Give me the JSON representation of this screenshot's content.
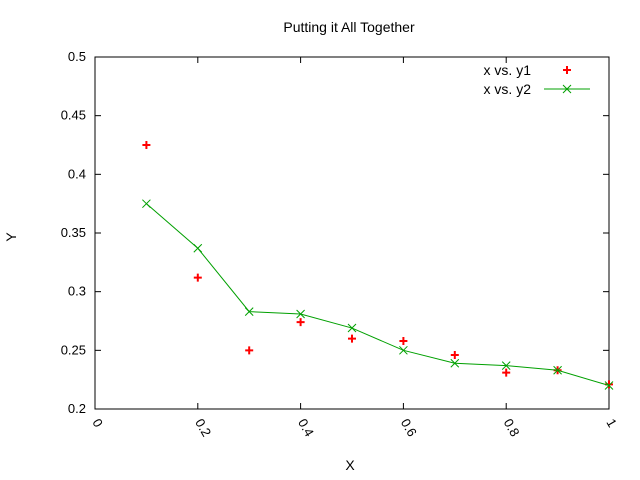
{
  "chart_data": {
    "type": "line",
    "title": "Putting it All Together",
    "xlabel": "X",
    "ylabel": "Y",
    "xlim": [
      0,
      1
    ],
    "ylim": [
      0.2,
      0.5
    ],
    "xticks": [
      "0",
      "0.2",
      "0.4",
      "0.6",
      "0.8",
      "1"
    ],
    "yticks": [
      "0.2",
      "0.25",
      "0.3",
      "0.35",
      "0.4",
      "0.45",
      "0.5"
    ],
    "grid": false,
    "legend_position": "top-right",
    "series": [
      {
        "name": "x vs. y1",
        "style": "points",
        "marker": "plus",
        "color": "#ff0000",
        "x": [
          0.1,
          0.2,
          0.3,
          0.4,
          0.5,
          0.6,
          0.7,
          0.8,
          0.9,
          1.0
        ],
        "y": [
          0.425,
          0.312,
          0.25,
          0.274,
          0.26,
          0.258,
          0.246,
          0.231,
          0.233,
          0.221
        ]
      },
      {
        "name": "x vs. y2",
        "style": "linespoints",
        "marker": "cross",
        "color": "#00a000",
        "x": [
          0.1,
          0.2,
          0.3,
          0.4,
          0.5,
          0.6,
          0.7,
          0.8,
          0.9,
          1.0
        ],
        "y": [
          0.375,
          0.337,
          0.283,
          0.281,
          0.269,
          0.25,
          0.239,
          0.237,
          0.233,
          0.22
        ]
      }
    ]
  }
}
